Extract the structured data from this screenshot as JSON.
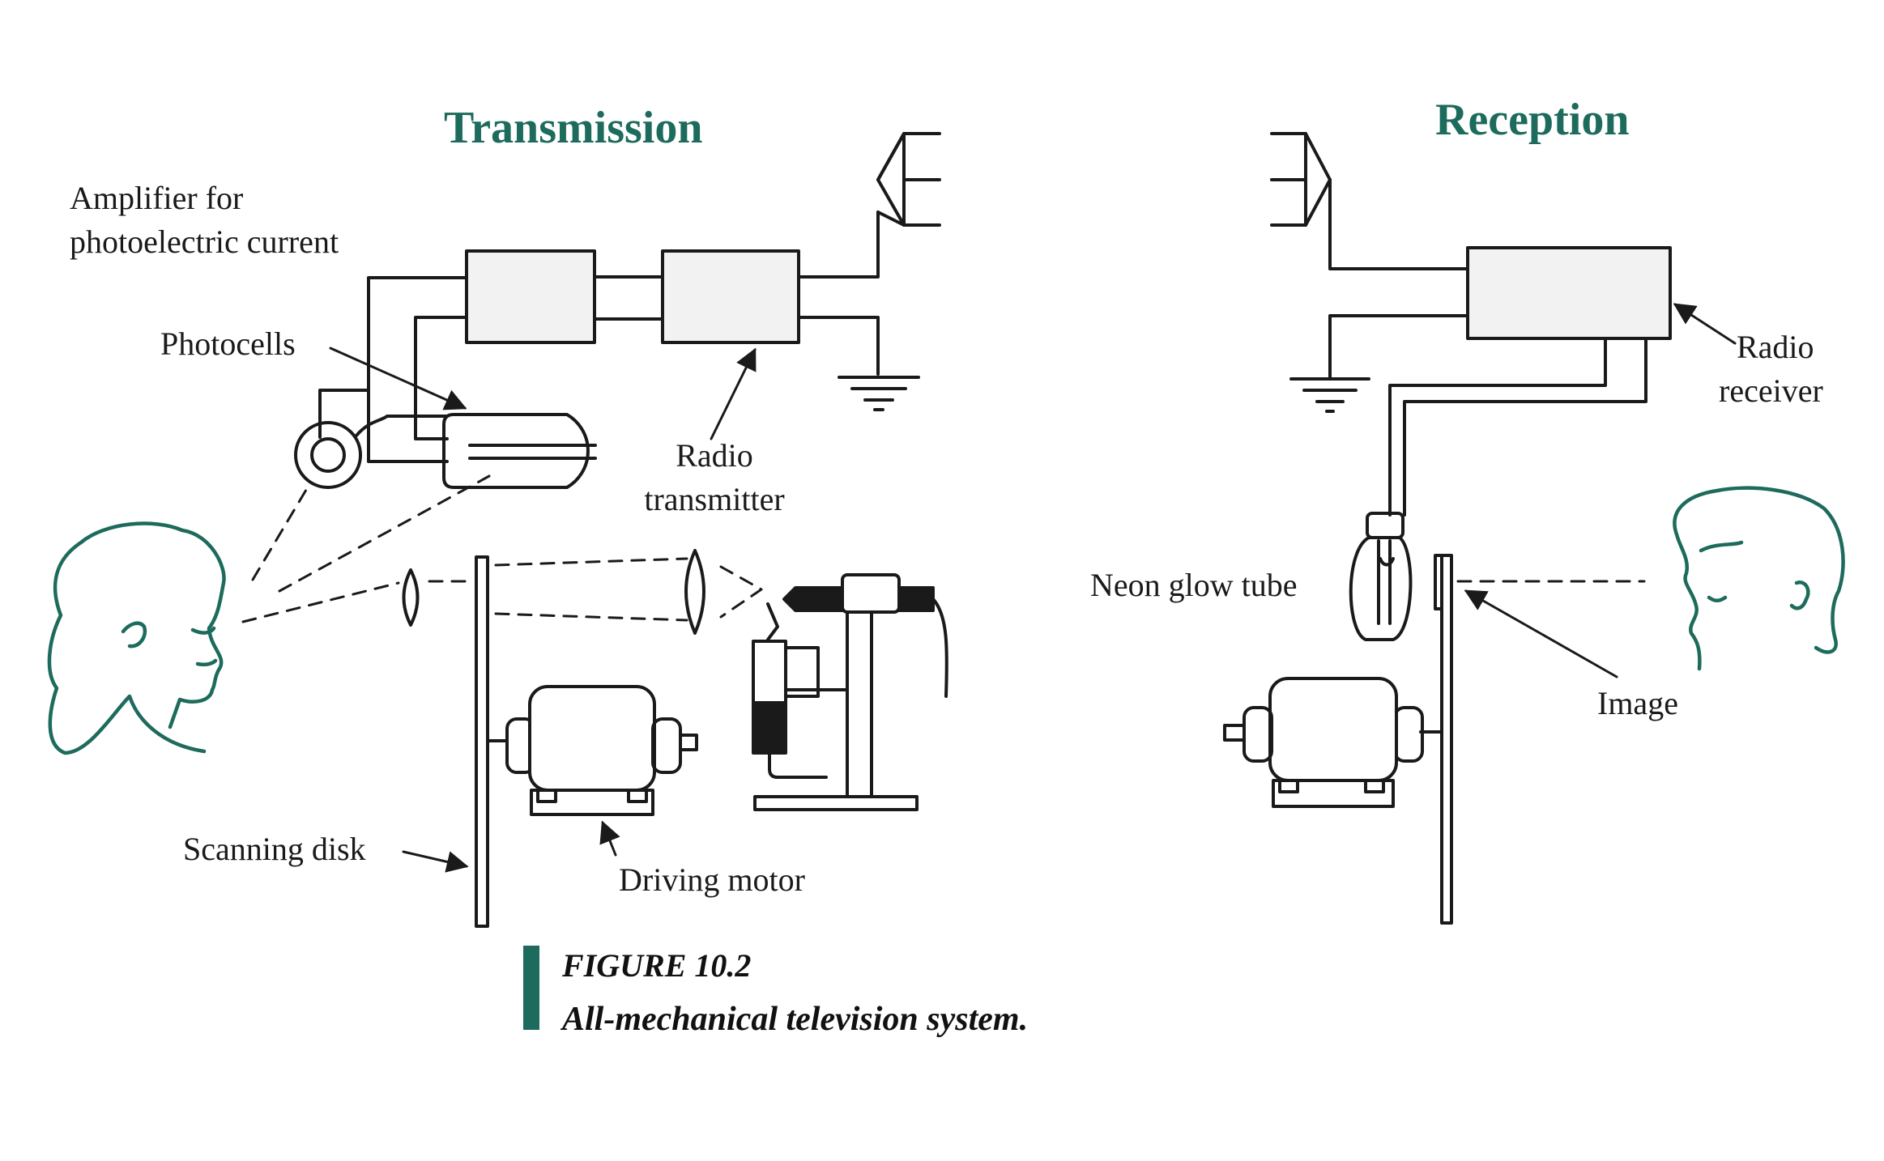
{
  "titles": {
    "transmission": "Transmission",
    "reception": "Reception"
  },
  "labels": {
    "amplifier_line1": "Amplifier for",
    "amplifier_line2": "photoelectric current",
    "photocells": "Photocells",
    "radio_transmitter_line1": "Radio",
    "radio_transmitter_line2": "transmitter",
    "scanning_disk": "Scanning disk",
    "driving_motor": "Driving motor",
    "neon_glow_tube": "Neon glow tube",
    "image": "Image",
    "radio_receiver_line1": "Radio",
    "radio_receiver_line2": "receiver"
  },
  "caption": {
    "figure_number": "FIGURE 10.2",
    "text": "All-mechanical television system."
  },
  "colors": {
    "accent": "#1d6b5c",
    "line": "#1a1a1a",
    "box_fill": "#f2f2f2"
  }
}
